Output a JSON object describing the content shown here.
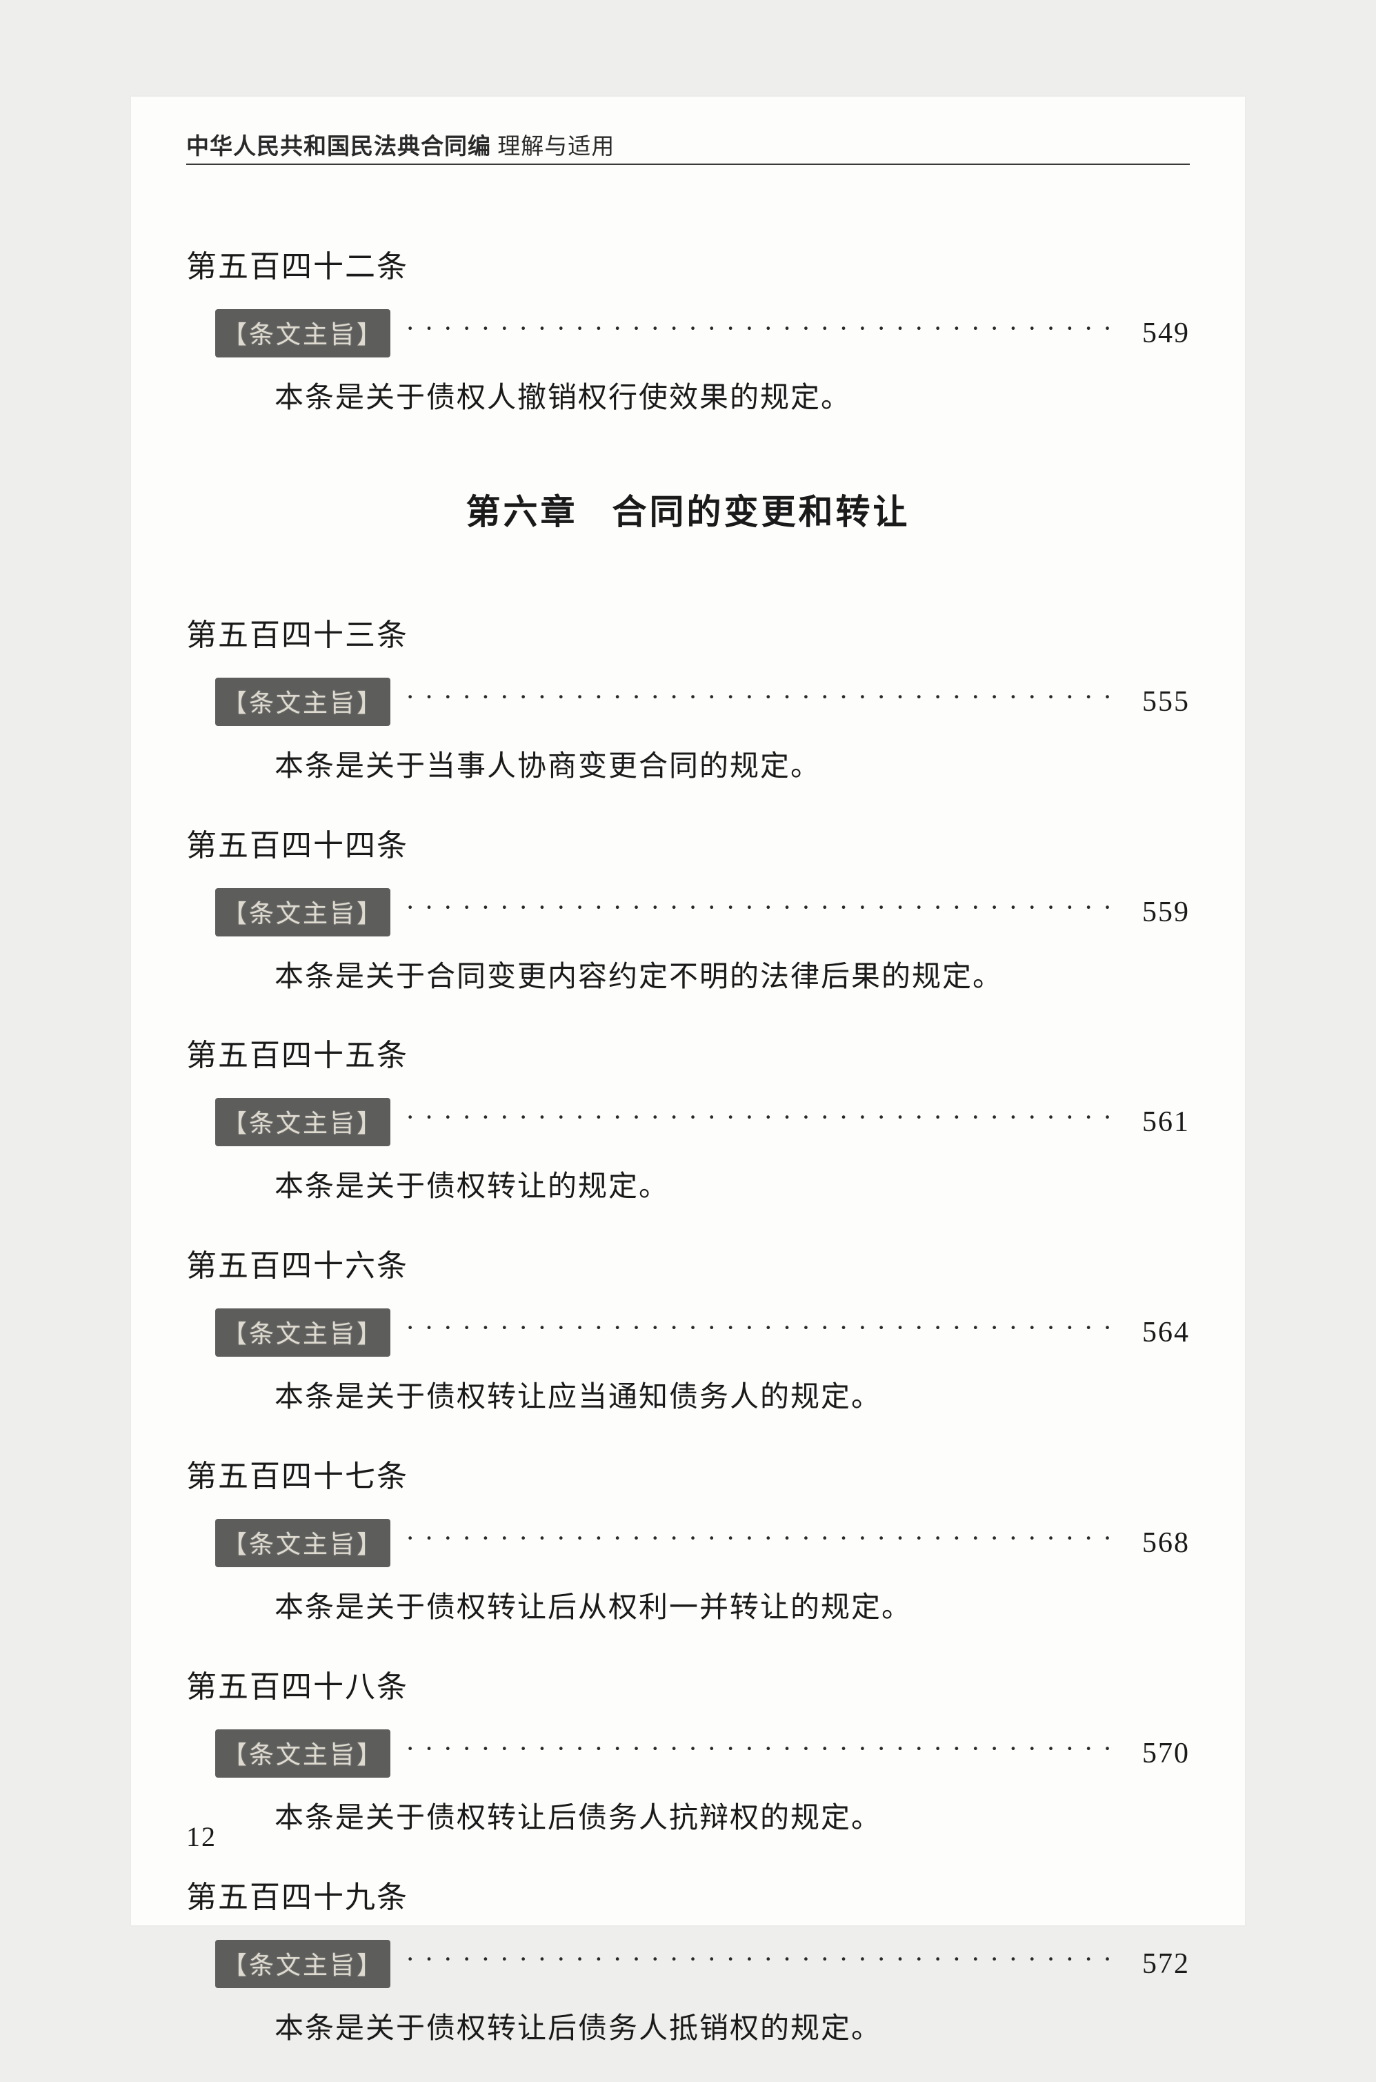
{
  "running_head_bold": "中华人民共和国民法典合同编",
  "running_head_light": " 理解与适用",
  "badge_label": "【条文主旨】",
  "chapter": {
    "num": "第六章",
    "title": "合同的变更和转让"
  },
  "pre_chapter": [
    {
      "title": "第五百四十二条",
      "page": "549",
      "desc": "本条是关于债权人撤销权行使效果的规定。"
    }
  ],
  "articles": [
    {
      "title": "第五百四十三条",
      "page": "555",
      "desc": "本条是关于当事人协商变更合同的规定。"
    },
    {
      "title": "第五百四十四条",
      "page": "559",
      "desc": "本条是关于合同变更内容约定不明的法律后果的规定。"
    },
    {
      "title": "第五百四十五条",
      "page": "561",
      "desc": "本条是关于债权转让的规定。"
    },
    {
      "title": "第五百四十六条",
      "page": "564",
      "desc": "本条是关于债权转让应当通知债务人的规定。"
    },
    {
      "title": "第五百四十七条",
      "page": "568",
      "desc": "本条是关于债权转让后从权利一并转让的规定。"
    },
    {
      "title": "第五百四十八条",
      "page": "570",
      "desc": "本条是关于债权转让后债务人抗辩权的规定。"
    },
    {
      "title": "第五百四十九条",
      "page": "572",
      "desc": "本条是关于债权转让后债务人抵销权的规定。"
    }
  ],
  "footer_page": "12"
}
